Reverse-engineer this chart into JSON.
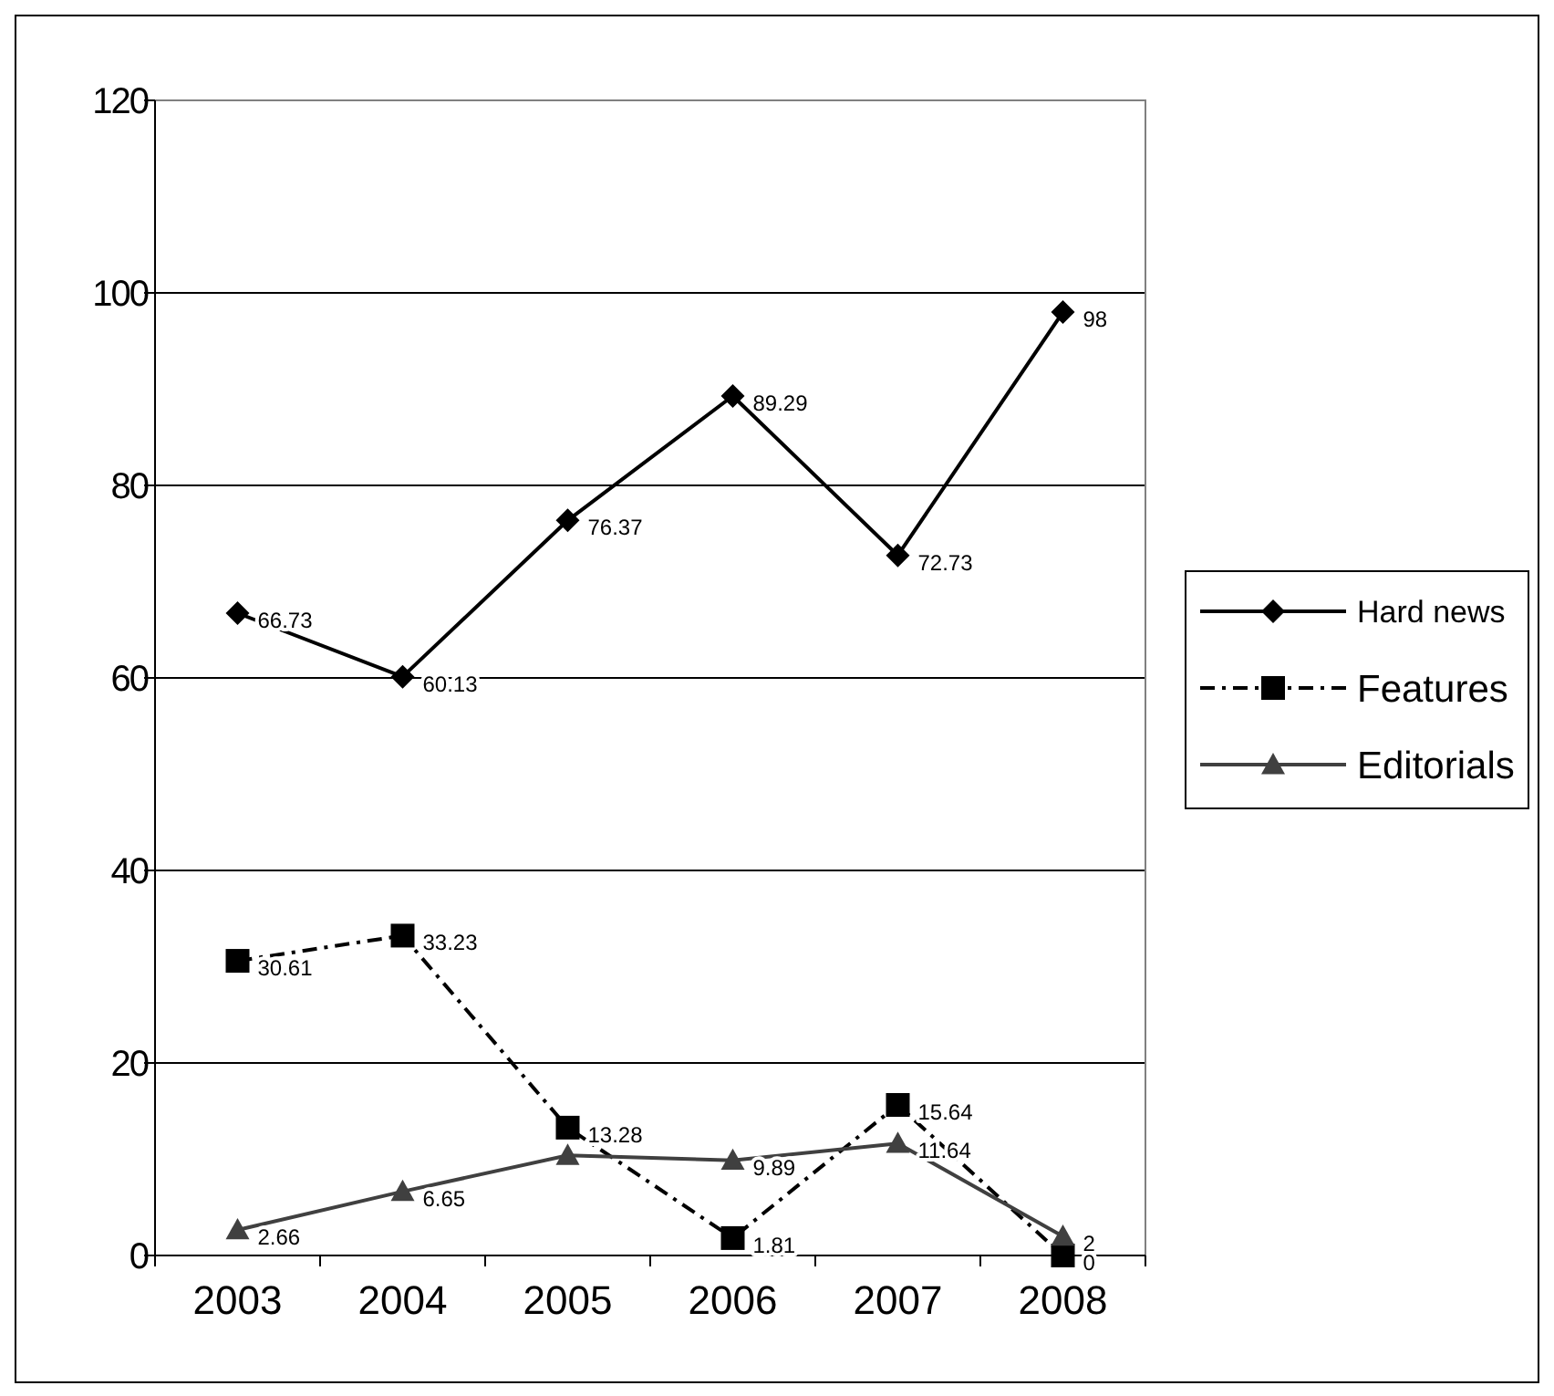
{
  "chart_data": {
    "type": "line",
    "categories": [
      "2003",
      "2004",
      "2005",
      "2006",
      "2007",
      "2008"
    ],
    "series": [
      {
        "name": "Hard news",
        "color": "#000000",
        "marker": "diamond",
        "line_style": "solid",
        "values": [
          66.73,
          60.13,
          76.37,
          89.29,
          72.73,
          98
        ],
        "value_labels": [
          "66.73",
          "60.13",
          "76.37",
          "89.29",
          "72.73",
          "98"
        ]
      },
      {
        "name": "Features",
        "color": "#000000",
        "marker": "square",
        "line_style": "dashed",
        "values": [
          30.61,
          33.23,
          13.28,
          1.81,
          15.64,
          0
        ],
        "value_labels": [
          "30.61",
          "33.23",
          "13.28",
          "1.81",
          "15.64",
          "0"
        ]
      },
      {
        "name": "Editorials",
        "color": "#404040",
        "marker": "triangle",
        "line_style": "solid",
        "values": [
          2.66,
          6.65,
          10.4,
          9.89,
          11.64,
          2
        ],
        "value_labels": [
          "2.66",
          "6.65",
          null,
          "9.89",
          "11.64",
          "2"
        ]
      }
    ],
    "ylim": [
      0,
      120
    ],
    "yticks": [
      0,
      20,
      40,
      60,
      80,
      100,
      120
    ],
    "grid": "y",
    "legend": "right"
  }
}
